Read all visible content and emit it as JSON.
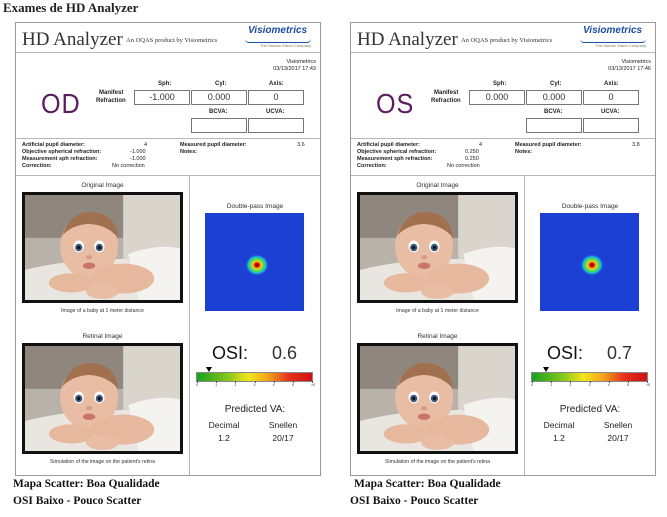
{
  "page": {
    "heading": "Exames de HD Analyzer"
  },
  "reports": [
    {
      "header": {
        "title": "HD Analyzer",
        "subtitle": "An OQAS product by Visiometrics",
        "logo": "Visiometrics",
        "logo_sub": "The Human Vision Company"
      },
      "meta": {
        "company": "Visiometrics",
        "datetime": "03/13/2017 17:43"
      },
      "eye": "OD",
      "refraction": {
        "label_line1": "Manifest",
        "label_line2": "Refraction",
        "sph_label": "Sph:",
        "cyl_label": "Cyl:",
        "axis_label": "Axis:",
        "sph": "-1.000",
        "cyl": "0.000",
        "axis": "0",
        "bcva_label": "BCVA:",
        "ucva_label": "UCVA:",
        "bcva": "",
        "ucva": ""
      },
      "params": {
        "art_pupil_label": "Artificial pupil diameter:",
        "art_pupil": "4",
        "obj_sph_label": "Objective spherical refraction:",
        "obj_sph": "-1.000",
        "meas_sph_label": "Measurement sph refraction:",
        "meas_sph": "-1.000",
        "correction_label": "Correction:",
        "correction": "No correction",
        "meas_pupil_label": "Measured pupil diameter:",
        "meas_pupil": "3.6",
        "notes_label": "Notes:"
      },
      "images": {
        "original_title": "Original Image",
        "original_caption": "Image of a baby at 1 meter distance",
        "retinal_title": "Retinal Image",
        "retinal_caption": "Simulation of the image on the patient's retina",
        "double_pass_title": "Double-pass Image"
      },
      "osi": {
        "label": "OSI:",
        "value": "0.6",
        "fraction": 0.1,
        "ticks": [
          "0",
          "1",
          "2",
          "3",
          "4",
          "5",
          ">5"
        ]
      },
      "predicted": {
        "title": "Predicted VA:",
        "decimal_label": "Decimal",
        "snellen_label": "Snellen",
        "decimal": "1.2",
        "snellen": "20/17"
      },
      "notes": {
        "line1": "Mapa Scatter: Boa Qualidade",
        "line2": "OSI Baixo - Pouco Scatter"
      }
    },
    {
      "header": {
        "title": "HD Analyzer",
        "subtitle": "An OQAS product by Visiometrics",
        "logo": "Visiometrics",
        "logo_sub": "The Human Vision Company"
      },
      "meta": {
        "company": "Visiometrics",
        "datetime": "03/13/2017 17:46"
      },
      "eye": "OS",
      "refraction": {
        "label_line1": "Manifest",
        "label_line2": "Refraction",
        "sph_label": "Sph:",
        "cyl_label": "Cyl:",
        "axis_label": "Axis:",
        "sph": "0.000",
        "cyl": "0.000",
        "axis": "0",
        "bcva_label": "BCVA:",
        "ucva_label": "UCVA:",
        "bcva": "",
        "ucva": ""
      },
      "params": {
        "art_pupil_label": "Artificial pupil diameter:",
        "art_pupil": "4",
        "obj_sph_label": "Objective spherical refraction:",
        "obj_sph": "0.250",
        "meas_sph_label": "Measurement sph refraction:",
        "meas_sph": "0.250",
        "correction_label": "Correction:",
        "correction": "No correction",
        "meas_pupil_label": "Measured pupil diameter:",
        "meas_pupil": "3.8",
        "notes_label": "Notes:"
      },
      "images": {
        "original_title": "Original Image",
        "original_caption": "Image of a baby at 1 meter distance",
        "retinal_title": "Retinal Image",
        "retinal_caption": "Simulation of the image on the patient's retina",
        "double_pass_title": "Double-pass Image"
      },
      "osi": {
        "label": "OSI:",
        "value": "0.7",
        "fraction": 0.12,
        "ticks": [
          "0",
          "1",
          "2",
          "3",
          "4",
          "5",
          ">5"
        ]
      },
      "predicted": {
        "title": "Predicted VA:",
        "decimal_label": "Decimal",
        "snellen_label": "Snellen",
        "decimal": "1.2",
        "snellen": "20/17"
      },
      "notes": {
        "line1": "Mapa Scatter: Boa Qualidade",
        "line2": "OSI Baixo - Pouco Scatter"
      }
    }
  ]
}
